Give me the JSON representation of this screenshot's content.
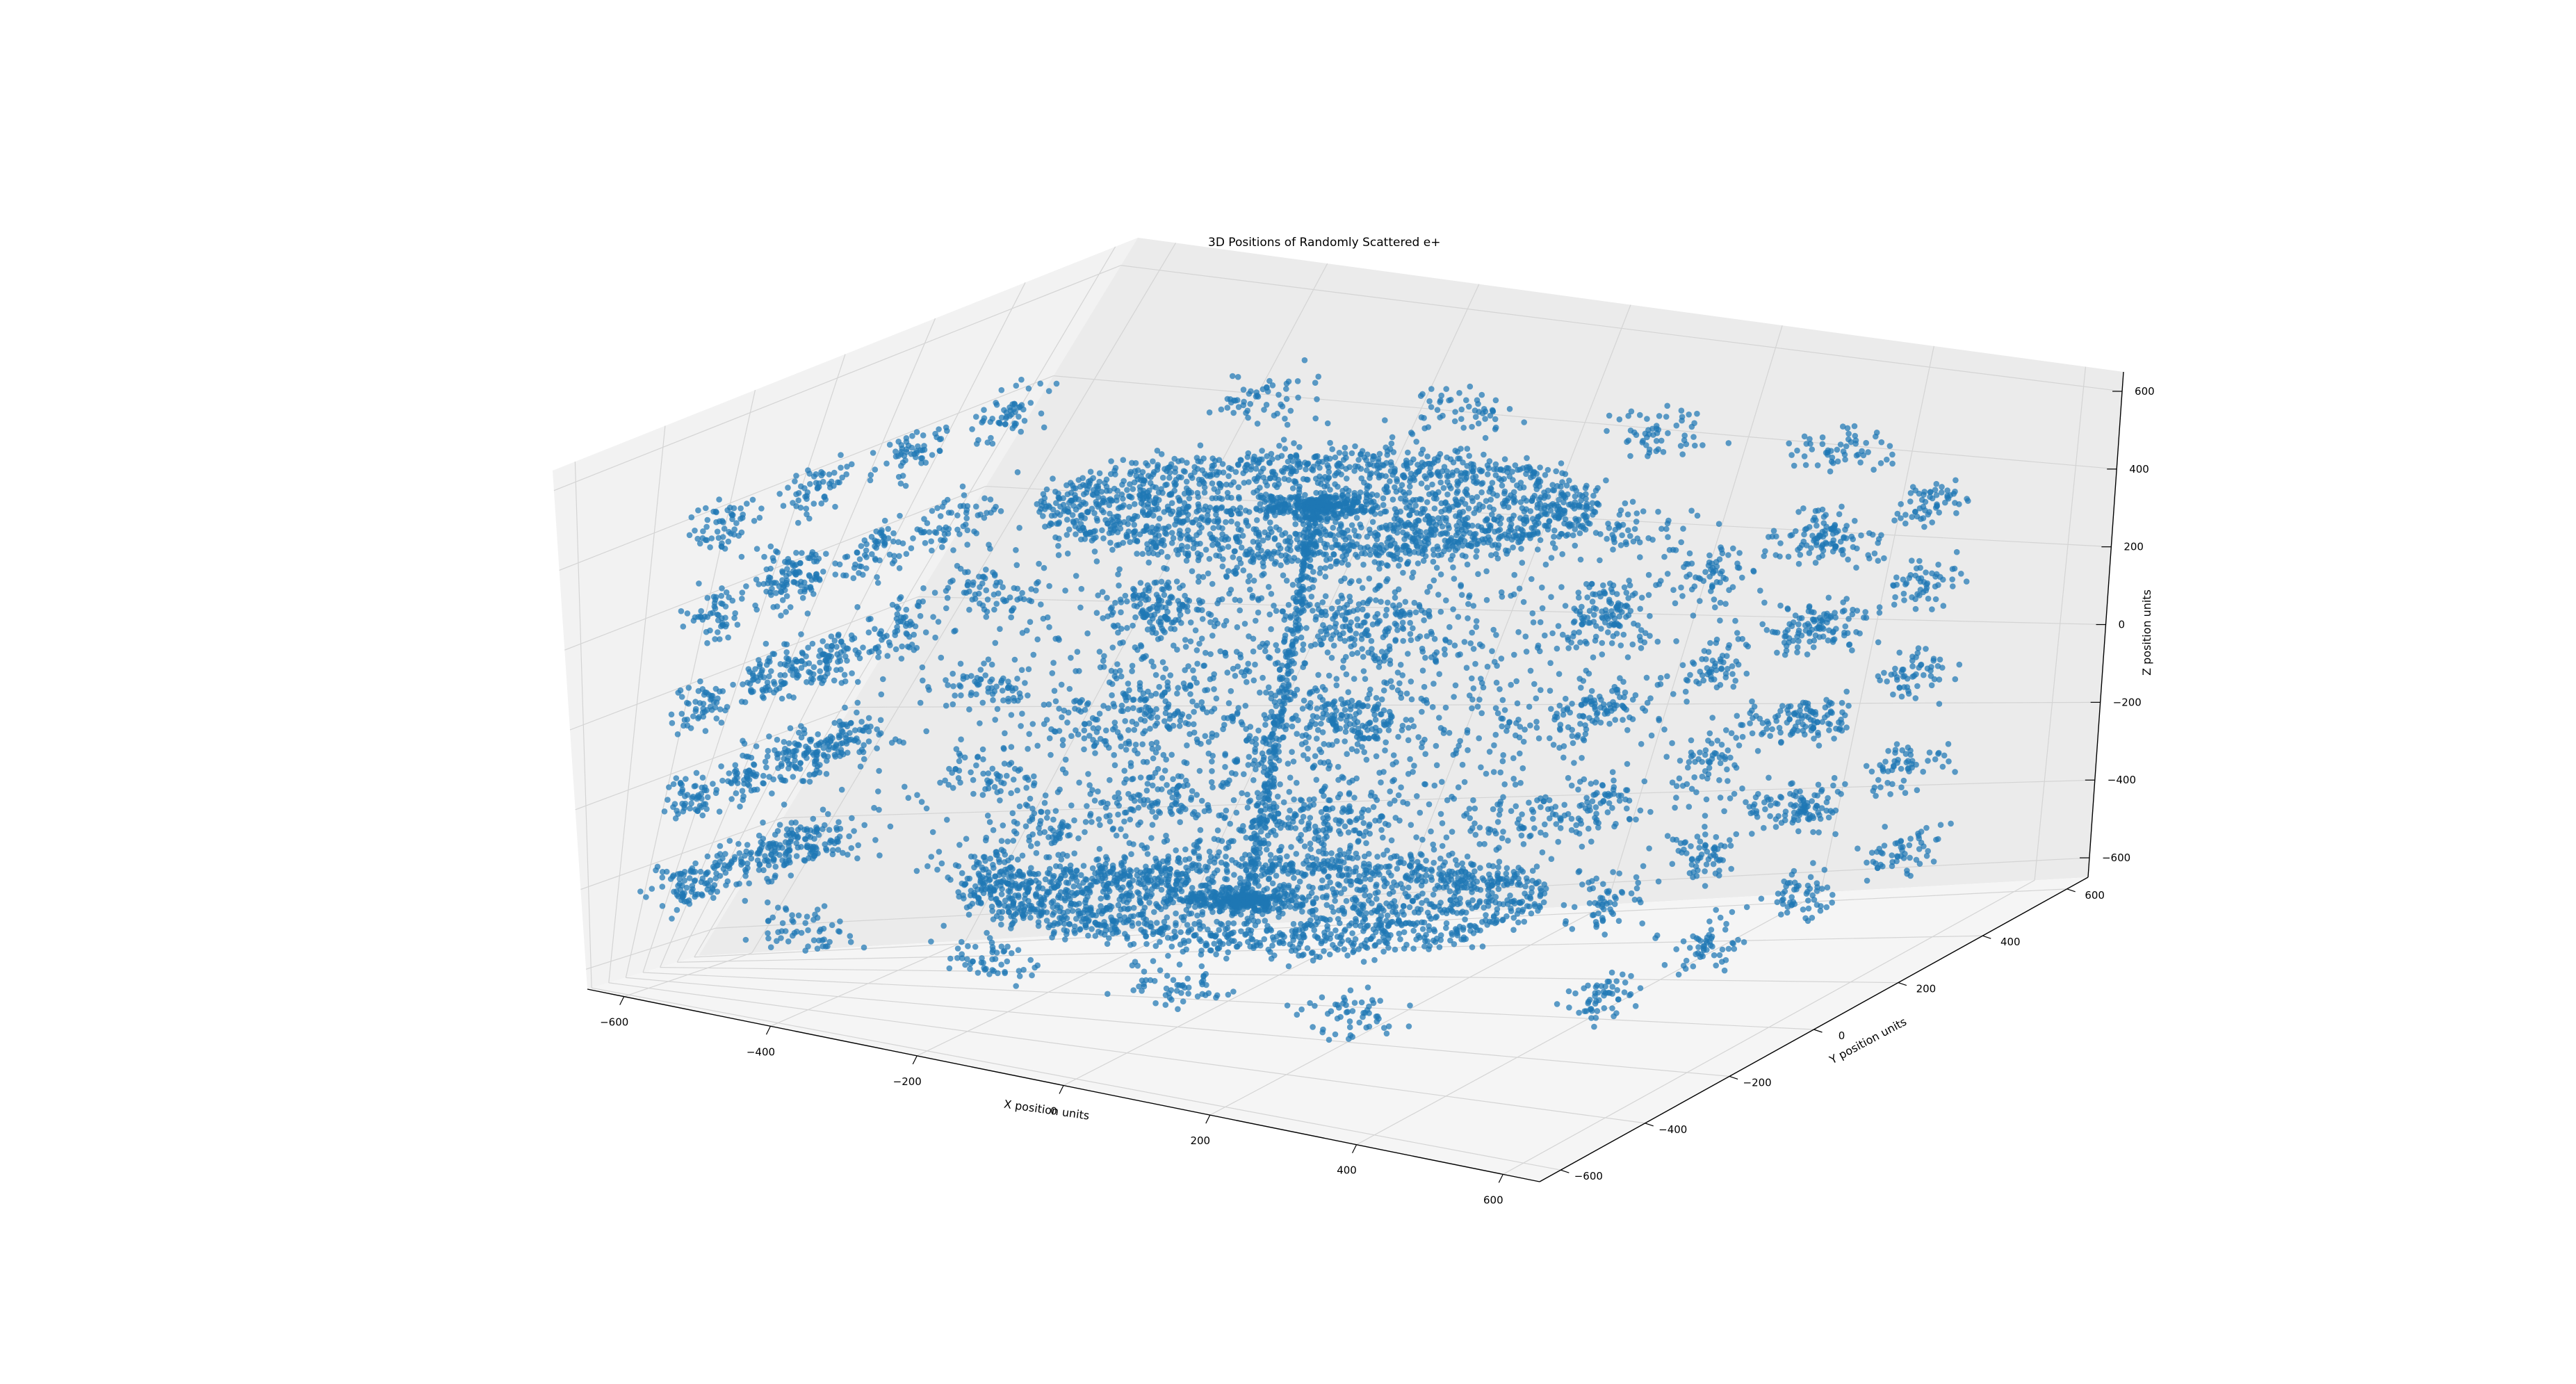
{
  "chart_data": {
    "type": "scatter",
    "projection": "3d",
    "title": "3D Positions of Randomly Scattered e+",
    "xlabel": "X position units",
    "ylabel": "Y position units",
    "zlabel": "Z position units",
    "xlim": [
      -650,
      650
    ],
    "ylim": [
      -650,
      650
    ],
    "zlim": [
      -650,
      650
    ],
    "x_ticks": [
      "−600",
      "−400",
      "−200",
      "0",
      "200",
      "400",
      "600"
    ],
    "y_ticks": [
      "−600",
      "−400",
      "−200",
      "0",
      "200",
      "400",
      "600"
    ],
    "z_ticks": [
      "−600",
      "−400",
      "−200",
      "0",
      "200",
      "400",
      "600"
    ],
    "grid": true,
    "legend": "none",
    "marker_color": "#1f77b4",
    "pane_color": "#f2f2f2",
    "series": [
      {
        "structure": "dense rings (annuli) at top and bottom, inner hole radius ~80, outer radius ~320",
        "ring_z": [
          430,
          -430
        ],
        "sample_points": [
          [
            -300,
            0,
            430
          ],
          [
            300,
            0,
            430
          ],
          [
            0,
            -300,
            430
          ],
          [
            0,
            300,
            430
          ],
          [
            -300,
            0,
            -430
          ],
          [
            300,
            0,
            -430
          ],
          [
            0,
            -300,
            -430
          ],
          [
            0,
            300,
            -430
          ]
        ]
      },
      {
        "structure": "central vertical column of points along z axis",
        "sample_points": [
          [
            0,
            0,
            400
          ],
          [
            0,
            0,
            200
          ],
          [
            0,
            0,
            0
          ],
          [
            0,
            0,
            -200
          ],
          [
            0,
            0,
            -400
          ]
        ]
      },
      {
        "structure": "clusters on the four side faces of a cube of half-width ~580, 5 levels along z",
        "face_levels_z": [
          420,
          210,
          0,
          -210,
          -420
        ],
        "sample_points": [
          [
            -580,
            -350,
            420
          ],
          [
            -580,
            350,
            0
          ],
          [
            580,
            -350,
            -210
          ],
          [
            580,
            350,
            420
          ],
          [
            -350,
            -580,
            210
          ],
          [
            350,
            580,
            -420
          ]
        ]
      },
      {
        "structure": "diffuse scatter inside the volume",
        "sample_points": [
          [
            -150,
            100,
            150
          ],
          [
            200,
            -100,
            -100
          ],
          [
            100,
            250,
            50
          ],
          [
            -250,
            -200,
            -250
          ]
        ]
      }
    ]
  }
}
